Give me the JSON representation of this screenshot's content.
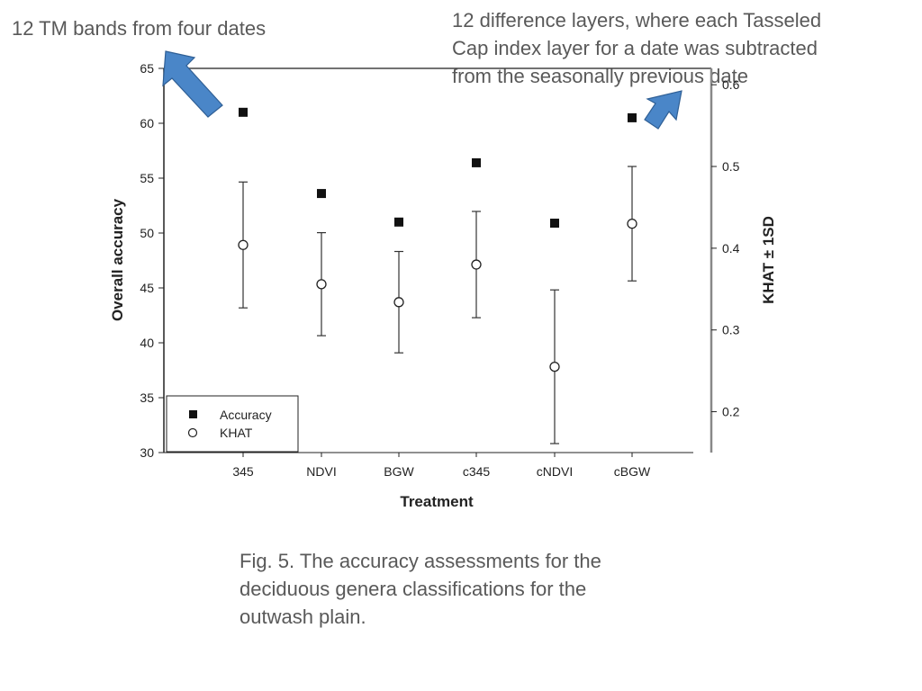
{
  "annotations": {
    "left_note": "12 TM bands from four dates",
    "right_note_lines": [
      "12 difference layers, where each Tasseled",
      "Cap index layer for a date was subtracted",
      "from the seasonally previous date"
    ]
  },
  "caption_lines": [
    "Fig. 5. The accuracy assessments for the",
    "deciduous genera classifications for the",
    "outwash plain."
  ],
  "colors": {
    "arrow": "#4a86c8",
    "arrow_outline": "#2f5f95",
    "text": "#595959",
    "axis": "#222222"
  },
  "chart_data": {
    "type": "scatter",
    "categories": [
      "345",
      "NDVI",
      "BGW",
      "c345",
      "cNDVI",
      "cBGW"
    ],
    "xlabel": "Treatment",
    "ylabel": "Overall accuracy",
    "y2label": "KHAT ± 1SD",
    "ylim": [
      30,
      65
    ],
    "y2lim": [
      0.15,
      0.62
    ],
    "yticks": [
      30,
      35,
      40,
      45,
      50,
      55,
      60,
      65
    ],
    "y2ticks": [
      0.2,
      0.3,
      0.4,
      0.5,
      0.6
    ],
    "legend_position": "bottom-left",
    "series": [
      {
        "name": "Accuracy",
        "marker": "filled-square",
        "axis": "left",
        "values": [
          61.0,
          53.6,
          51.0,
          56.4,
          50.9,
          60.5
        ]
      },
      {
        "name": "KHAT",
        "marker": "open-circle",
        "axis": "right",
        "values": [
          0.404,
          0.356,
          0.334,
          0.38,
          0.255,
          0.43
        ],
        "sd": [
          0.077,
          0.063,
          0.062,
          0.065,
          0.094,
          0.07
        ]
      }
    ]
  }
}
